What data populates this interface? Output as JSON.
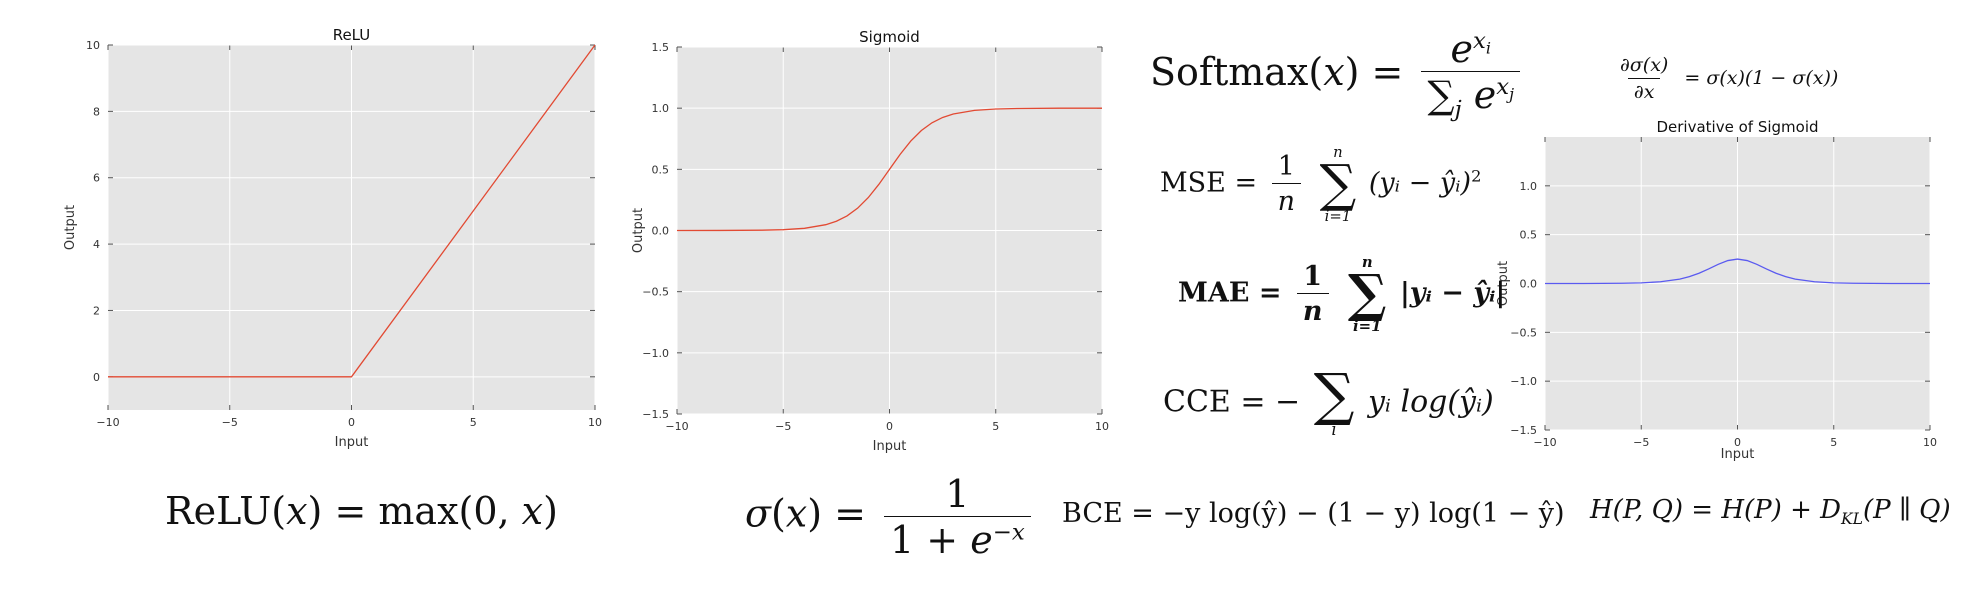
{
  "chart_data": [
    {
      "type": "line",
      "title": "ReLU",
      "xlabel": "Input",
      "ylabel": "Output",
      "xlim": [
        -10,
        10
      ],
      "ylim": [
        -1,
        10
      ],
      "xticks": [
        -10,
        -5,
        0,
        5,
        10
      ],
      "yticks": [
        0,
        2,
        4,
        6,
        8,
        10
      ],
      "xtick_labels": [
        "−10",
        "−5",
        "0",
        "5",
        "10"
      ],
      "ytick_labels": [
        "0",
        "2",
        "4",
        "6",
        "8",
        "10"
      ],
      "grid": true,
      "series": [
        {
          "color": "#e24a33",
          "x": [
            -10,
            0,
            10
          ],
          "y": [
            0,
            0,
            10
          ]
        }
      ]
    },
    {
      "type": "line",
      "title": "Sigmoid",
      "xlabel": "Input",
      "ylabel": "Output",
      "xlim": [
        -10,
        10
      ],
      "ylim": [
        -1.5,
        1.5
      ],
      "xticks": [
        -10,
        -5,
        0,
        5,
        10
      ],
      "yticks": [
        -1.5,
        -1.0,
        -0.5,
        0.0,
        0.5,
        1.0,
        1.5
      ],
      "xtick_labels": [
        "−10",
        "−5",
        "0",
        "5",
        "10"
      ],
      "ytick_labels": [
        "−1.5",
        "−1.0",
        "−0.5",
        "0.0",
        "0.5",
        "1.0",
        "1.5"
      ],
      "grid": true,
      "series": [
        {
          "color": "#e24a33",
          "x": [
            -10,
            -8,
            -6,
            -5,
            -4,
            -3,
            -2.5,
            -2,
            -1.5,
            -1,
            -0.5,
            0,
            0.5,
            1,
            1.5,
            2,
            2.5,
            3,
            4,
            5,
            6,
            8,
            10
          ],
          "y": [
            0.0,
            0.0003,
            0.0025,
            0.0067,
            0.018,
            0.0474,
            0.0759,
            0.1192,
            0.1824,
            0.2689,
            0.3775,
            0.5,
            0.6225,
            0.7311,
            0.8176,
            0.8808,
            0.9241,
            0.9526,
            0.982,
            0.9933,
            0.9975,
            0.9997,
            1.0
          ]
        }
      ]
    },
    {
      "type": "line",
      "title": "Derivative of Sigmoid",
      "xlabel": "Input",
      "ylabel": "Output",
      "xlim": [
        -10,
        10
      ],
      "ylim": [
        -1.5,
        1.5
      ],
      "xticks": [
        -10,
        -5,
        0,
        5,
        10
      ],
      "yticks": [
        -1.5,
        -1.0,
        -0.5,
        0.0,
        0.5,
        1.0
      ],
      "xtick_labels": [
        "−10",
        "−5",
        "0",
        "5",
        "10"
      ],
      "ytick_labels": [
        "−1.5",
        "−1.0",
        "−0.5",
        "0.0",
        "0.5",
        "1.0"
      ],
      "grid": true,
      "series": [
        {
          "color": "#5a5af0",
          "x": [
            -10,
            -8,
            -6,
            -5,
            -4,
            -3,
            -2.5,
            -2,
            -1.5,
            -1,
            -0.5,
            0,
            0.5,
            1,
            1.5,
            2,
            2.5,
            3,
            4,
            5,
            6,
            8,
            10
          ],
          "y": [
            0.0,
            0.0003,
            0.0025,
            0.0066,
            0.0177,
            0.0452,
            0.0701,
            0.105,
            0.1491,
            0.1966,
            0.235,
            0.25,
            0.235,
            0.1966,
            0.1491,
            0.105,
            0.0701,
            0.0452,
            0.0177,
            0.0066,
            0.0025,
            0.0003,
            0.0
          ]
        }
      ]
    }
  ],
  "formulas": {
    "relu": {
      "name": "ReLU",
      "var": "x",
      "rhs": "max(0, ",
      "close": ")"
    },
    "sigmoid": {
      "sigma": "σ",
      "var": "x",
      "num": "1",
      "den_a": "1 + ",
      "den_e": "e",
      "den_exp": "−x"
    },
    "softmax": {
      "name": "Softmax",
      "var": "x",
      "num_base": "e",
      "num_exp_var": "x",
      "num_exp_sub": "i",
      "den_sum": "∑",
      "den_sub": "j",
      "den_base": "e",
      "den_exp_var": "x",
      "den_exp_sub": "j"
    },
    "mse": {
      "name": "MSE",
      "one": "1",
      "n": "n",
      "sum": "∑",
      "upper": "n",
      "lower": "i=1",
      "body": "(yᵢ − ŷᵢ)",
      "pow": "2"
    },
    "mae": {
      "name": "MAE",
      "one": "1",
      "n": "n",
      "sum": "∑",
      "upper": "n",
      "lower": "i=1",
      "body": "|yᵢ − ŷᵢ|"
    },
    "cce": {
      "name": "CCE",
      "eq": " = −",
      "sum": "∑",
      "lower": "i",
      "body": "yᵢ log(ŷᵢ)"
    },
    "bce": {
      "text": "BCE = −y log(ŷ) − (1 − y) log(1 − ŷ)"
    },
    "kl": {
      "text": "H(P, Q) = H(P) + D",
      "sub": "KL",
      "tail": "(P ∥ Q)"
    },
    "dsig": {
      "num": "∂σ(x)",
      "den": "∂x",
      "rhs": "= σ(x)(1 − σ(x))"
    }
  }
}
